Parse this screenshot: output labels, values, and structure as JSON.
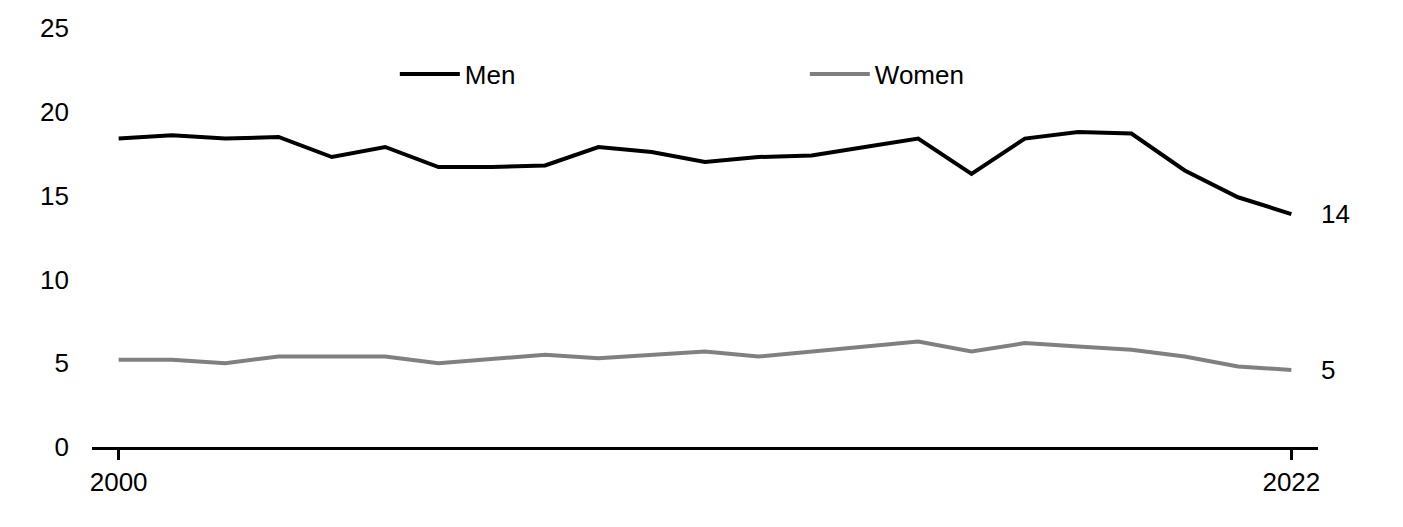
{
  "chart_data": {
    "type": "line",
    "x": [
      2000,
      2001,
      2002,
      2003,
      2004,
      2005,
      2006,
      2007,
      2008,
      2009,
      2010,
      2011,
      2012,
      2013,
      2014,
      2015,
      2016,
      2017,
      2018,
      2019,
      2020,
      2021,
      2022
    ],
    "series": [
      {
        "name": "Men",
        "color": "#000000",
        "values": [
          18.4,
          18.6,
          18.4,
          18.5,
          17.3,
          17.9,
          16.7,
          16.7,
          16.8,
          17.9,
          17.6,
          17.0,
          17.3,
          17.4,
          17.9,
          18.4,
          16.3,
          18.4,
          18.8,
          18.7,
          16.5,
          14.9,
          13.9
        ]
      },
      {
        "name": "Women",
        "color": "#808080",
        "values": [
          5.2,
          5.2,
          5.0,
          5.4,
          5.4,
          5.4,
          5.0,
          5.25,
          5.5,
          5.3,
          5.5,
          5.7,
          5.4,
          5.7,
          6.0,
          6.3,
          5.7,
          6.2,
          6.0,
          5.8,
          5.4,
          4.8,
          4.6
        ]
      }
    ],
    "annotations": [
      {
        "x": 2022,
        "y": 13.9,
        "text": "14"
      },
      {
        "x": 2022,
        "y": 4.6,
        "text": "5"
      }
    ],
    "xlim": [
      1999.5,
      2022.5
    ],
    "xticks": [
      2000,
      2022
    ],
    "ylim": [
      0,
      25
    ],
    "yticks": [
      0,
      5,
      10,
      15,
      20,
      25
    ],
    "grid": false,
    "legend": "top"
  }
}
